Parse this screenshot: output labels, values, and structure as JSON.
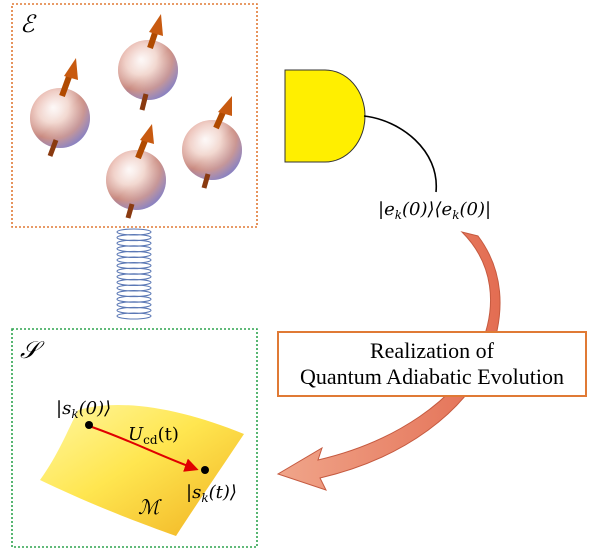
{
  "environment": {
    "label": "ℰ"
  },
  "system": {
    "label": "𝒮",
    "manifold_label": "ℳ",
    "initial_state_label": "|s",
    "initial_state_sub": "k",
    "initial_state_arg": "(0)⟩",
    "final_state_label": "|s",
    "final_state_sub": "k",
    "final_state_arg": "(t)⟩",
    "operator_label": "U",
    "operator_sub": "cd",
    "operator_arg": "(t)"
  },
  "measurement": {
    "projector_part1": "|e",
    "projector_sub1": "k",
    "projector_part2": "(0)⟩⟨e",
    "projector_sub2": "k",
    "projector_part3": "(0)|"
  },
  "caption": {
    "line1": "Realization of",
    "line2": "Quantum Adiabatic Evolution"
  },
  "colors": {
    "environment_border": "#e07a35",
    "system_border": "#2ea44f",
    "detector_fill": "#ffef00",
    "spring": "#5b78b5",
    "arrow_fill": "#e8866a",
    "path_arrow": "#e00000",
    "spin_arrow": "#b04a00"
  },
  "icons": {
    "spins": "spin-particle-icon",
    "detector": "detector-icon",
    "spring": "coupling-spring-icon"
  }
}
